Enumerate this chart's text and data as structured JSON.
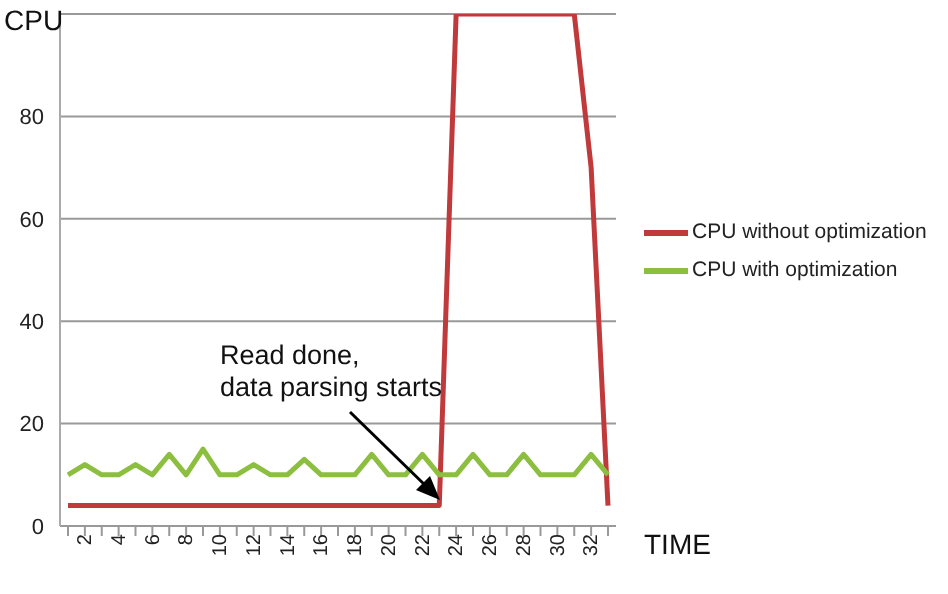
{
  "chart_data": {
    "type": "line",
    "xlabel": "TIME",
    "ylabel": "CPU",
    "categories": [
      null,
      "2",
      null,
      "4",
      null,
      "6",
      null,
      "8",
      null,
      "10",
      null,
      "12",
      null,
      "14",
      null,
      "16",
      null,
      "18",
      null,
      "20",
      null,
      "22",
      null,
      "24",
      null,
      "26",
      null,
      "28",
      null,
      "30",
      null,
      "32",
      null
    ],
    "series": [
      {
        "name": "CPU without optimization",
        "color": "#c0393b",
        "values": [
          4,
          4,
          4,
          4,
          4,
          4,
          4,
          4,
          4,
          4,
          4,
          4,
          4,
          4,
          4,
          4,
          4,
          4,
          4,
          4,
          4,
          4,
          4,
          100,
          100,
          100,
          100,
          100,
          100,
          100,
          100,
          70,
          4
        ]
      },
      {
        "name": "CPU with optimization",
        "color": "#8cbf3f",
        "values": [
          10,
          12,
          10,
          10,
          12,
          10,
          14,
          10,
          15,
          10,
          10,
          12,
          10,
          10,
          13,
          10,
          10,
          10,
          14,
          10,
          10,
          14,
          10,
          10,
          14,
          10,
          10,
          14,
          10,
          10,
          10,
          14,
          10
        ]
      }
    ],
    "ylim": [
      0,
      100
    ],
    "yticks": [
      0,
      20,
      40,
      60,
      80,
      {
        "value": 100,
        "label": null
      }
    ],
    "grid": "y",
    "legend": "right",
    "marker": "none",
    "line_style": "solid",
    "annotations": [
      "Read done,\ndata parsing starts"
    ]
  }
}
